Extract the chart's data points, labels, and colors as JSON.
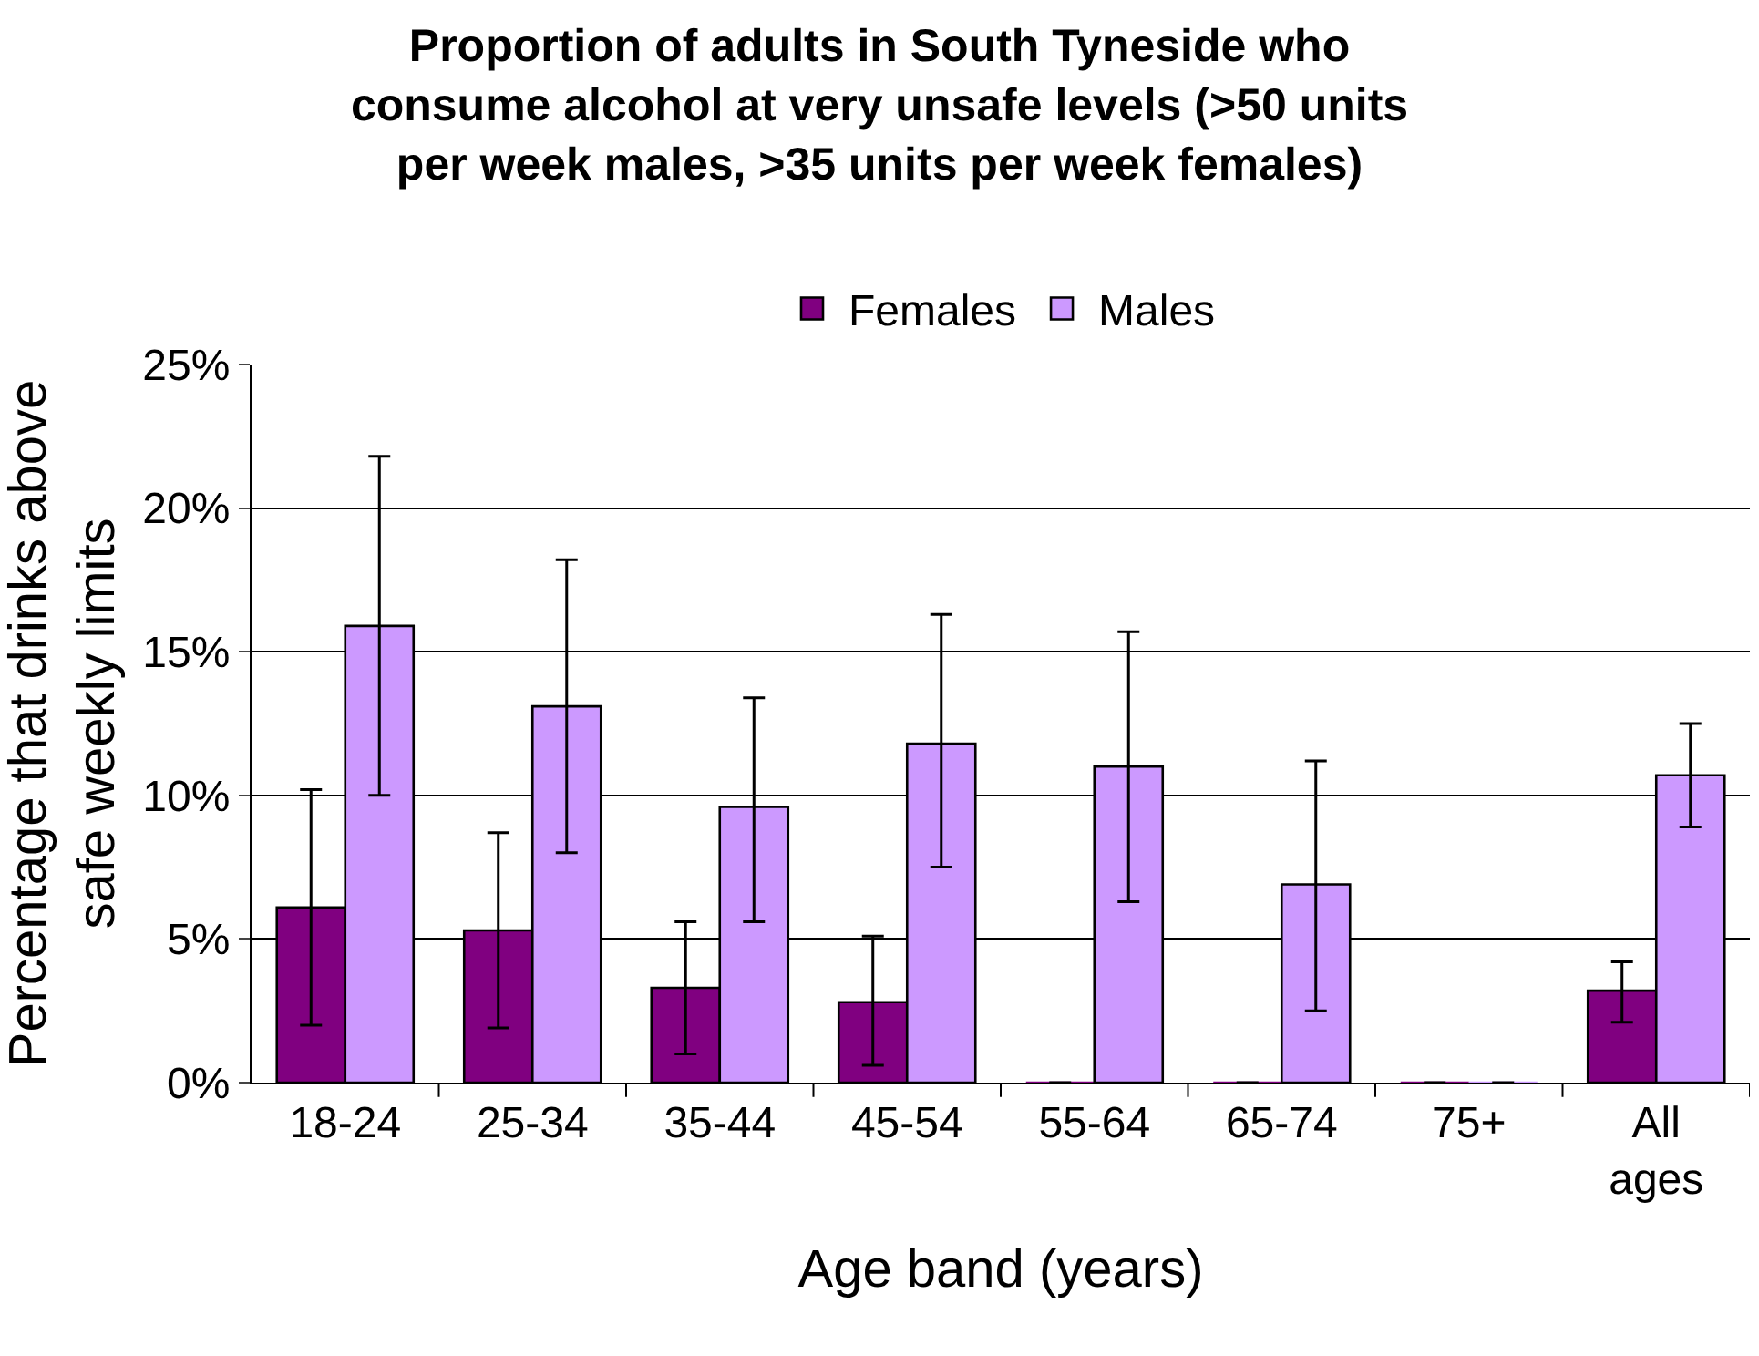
{
  "chart_data": {
    "type": "bar",
    "title": "Proportion of adults in South Tyneside who consume alcohol at very unsafe levels (>50 units per week males, >35 units per week females)",
    "xlabel": "Age band (years)",
    "ylabel": "Percentage that drinks above safe weekly limits",
    "categories": [
      "18-24",
      "25-34",
      "35-44",
      "45-54",
      "55-64",
      "65-74",
      "75+",
      "All ages"
    ],
    "series": [
      {
        "name": "Females",
        "color": "#800080",
        "values": [
          6.1,
          5.3,
          3.3,
          2.8,
          0,
          0,
          0,
          3.2
        ],
        "errors": [
          [
            2.0,
            10.2
          ],
          [
            1.9,
            8.7
          ],
          [
            1.0,
            5.6
          ],
          [
            0.6,
            5.1
          ],
          null,
          null,
          null,
          [
            2.1,
            4.2
          ]
        ]
      },
      {
        "name": "Males",
        "color": "#cc99ff",
        "values": [
          15.9,
          13.1,
          9.6,
          11.8,
          11.0,
          6.9,
          0,
          10.7
        ],
        "errors": [
          [
            10.0,
            21.8
          ],
          [
            8.0,
            18.2
          ],
          [
            5.6,
            13.4
          ],
          [
            7.5,
            16.3
          ],
          [
            6.3,
            15.7
          ],
          [
            2.5,
            11.2
          ],
          null,
          [
            8.9,
            12.5
          ]
        ]
      }
    ],
    "ylim": [
      0,
      25
    ],
    "yticks": [
      {
        "value": 0,
        "label": "0%"
      },
      {
        "value": 5,
        "label": "5%"
      },
      {
        "value": 10,
        "label": "10%"
      },
      {
        "value": 15,
        "label": "15%"
      },
      {
        "value": 20,
        "label": "20%"
      },
      {
        "value": 25,
        "label": "25%"
      }
    ],
    "grid": "y",
    "legend": "top"
  }
}
